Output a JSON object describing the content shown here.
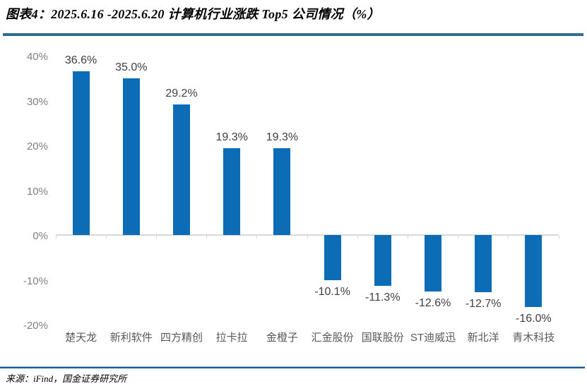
{
  "header": {
    "title": "图表4：2025.6.16 -2025.6.20 计算机行业涨跌 Top5 公司情况（%）"
  },
  "footer": {
    "source": "来源：iFind，国金证券研究所"
  },
  "colors": {
    "bar": "#0d6cb6",
    "title_rule": "#2e6d8c",
    "footer_rule": "#1c5c8f",
    "axis_line": "#d9d9d9",
    "y_tick_label": "#7f7f7f",
    "value_label": "#404040",
    "category_label": "#595959",
    "title_text": "#000000"
  },
  "chart_data": {
    "type": "bar",
    "title": "图表4：2025.6.16 -2025.6.20 计算机行业涨跌 Top5 公司情况（%）",
    "categories": [
      "楚天龙",
      "新利软件",
      "四方精创",
      "拉卡拉",
      "金橙子",
      "汇金股份",
      "国联股份",
      "ST迪威迅",
      "新北洋",
      "青木科技"
    ],
    "values": [
      36.6,
      35.0,
      29.2,
      19.3,
      19.3,
      -10.1,
      -11.3,
      -12.6,
      -12.7,
      -16.0
    ],
    "value_labels": [
      "36.6%",
      "35.0%",
      "29.2%",
      "19.3%",
      "19.3%",
      "-10.1%",
      "-11.3%",
      "-12.6%",
      "-12.7%",
      "-16.0%"
    ],
    "xlabel": "",
    "ylabel": "",
    "ylim": [
      -20,
      40
    ],
    "y_ticks": [
      {
        "label": "40%",
        "value": 40
      },
      {
        "label": "30%",
        "value": 30
      },
      {
        "label": "20%",
        "value": 20
      },
      {
        "label": "10%",
        "value": 10
      },
      {
        "label": "0%",
        "value": 0
      },
      {
        "label": "-10%",
        "value": -10
      },
      {
        "label": "-20%",
        "value": -20
      }
    ],
    "grid": false,
    "legend_position": "none"
  }
}
